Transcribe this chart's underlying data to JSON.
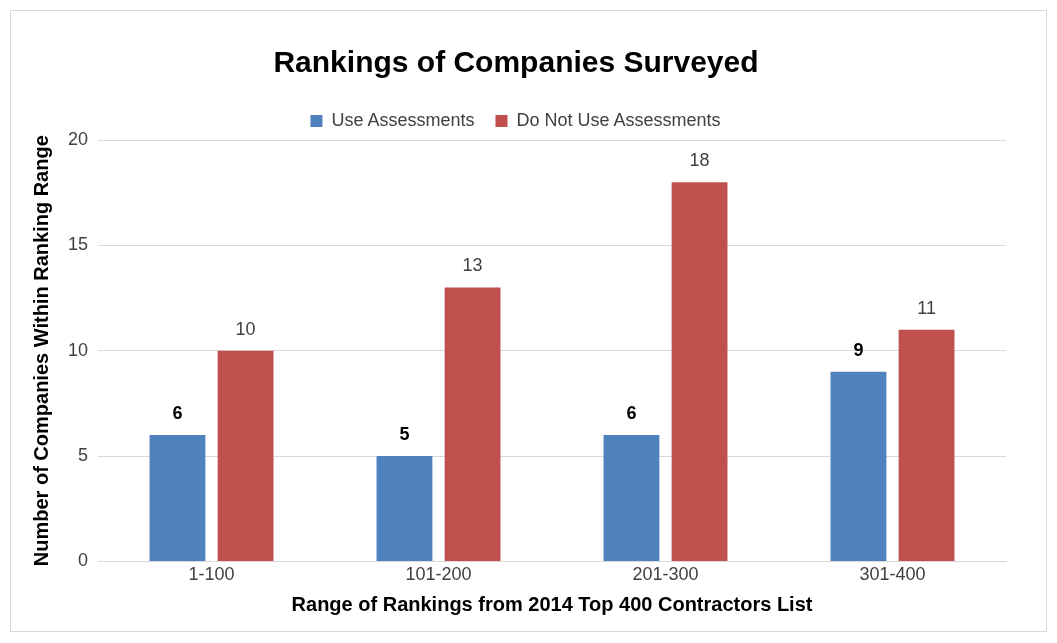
{
  "chart_data": {
    "type": "bar",
    "title": "Rankings of Companies Surveyed",
    "xlabel": "Range of Rankings from 2014 Top 400 Contractors List",
    "ylabel": "Number of Companies Within Ranking Range",
    "categories": [
      "1-100",
      "101-200",
      "201-300",
      "301-400"
    ],
    "series": [
      {
        "name": "Use Assessments",
        "color": "#4f81bd",
        "values": [
          6,
          5,
          6,
          9
        ]
      },
      {
        "name": "Do Not Use Assessments",
        "color": "#c0504d",
        "values": [
          10,
          13,
          18,
          11
        ]
      }
    ],
    "ylim": [
      0,
      20
    ],
    "yticks": [
      0,
      5,
      10,
      15,
      20
    ],
    "grid": "y",
    "legend": "top",
    "data_labels": true
  }
}
